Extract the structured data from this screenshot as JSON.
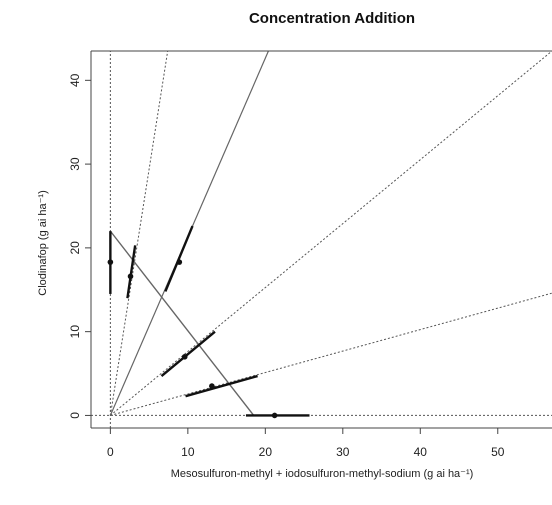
{
  "chart_data": {
    "type": "scatter",
    "title": "Concentration Addition",
    "xlabel": "Mesosulfuron-methyl + iodosulfuron-methyl-sodium (g ai ha⁻¹)",
    "ylabel": "Clodinafop (g ai ha⁻¹)",
    "xlim": [
      -2.5,
      57
    ],
    "ylim": [
      -1.5,
      43.5
    ],
    "x_ticks": [
      0,
      10,
      20,
      30,
      40,
      50
    ],
    "y_ticks": [
      0,
      10,
      20,
      30,
      40
    ],
    "grid": false,
    "reference_lines": [
      {
        "style": "dotted",
        "x1": 0,
        "y1": -1.5,
        "x2": 0,
        "y2": 43.5
      },
      {
        "style": "dotted",
        "x1": -2.5,
        "y1": 0,
        "x2": 57,
        "y2": 0
      },
      {
        "style": "dotted",
        "x1": 0,
        "y1": 0,
        "x2": 7.4,
        "y2": 43.5
      },
      {
        "style": "dotted",
        "x1": 0,
        "y1": 0,
        "x2": 57,
        "y2": 43.5
      },
      {
        "style": "dotted",
        "x1": 0,
        "y1": 0,
        "x2": 57,
        "y2": 14.6
      }
    ],
    "solid_rays": [
      {
        "x1": 0,
        "y1": 0,
        "x2": 20.4,
        "y2": 43.5
      }
    ],
    "isobole": {
      "x_intercept": 18.5,
      "y_intercept": 22
    },
    "points": [
      {
        "x": 0,
        "y": 18.3,
        "interval": {
          "from": [
            0,
            14.5
          ],
          "to": [
            0,
            22.0
          ]
        }
      },
      {
        "x": 2.6,
        "y": 16.6,
        "interval": {
          "from": [
            2.2,
            14.0
          ],
          "to": [
            3.2,
            20.3
          ]
        }
      },
      {
        "x": 8.9,
        "y": 18.3,
        "interval": {
          "from": [
            7.1,
            14.8
          ],
          "to": [
            10.6,
            22.6
          ]
        }
      },
      {
        "x": 9.6,
        "y": 7.0,
        "interval": {
          "from": [
            6.6,
            4.7
          ],
          "to": [
            13.5,
            10.0
          ]
        }
      },
      {
        "x": 13.1,
        "y": 3.5,
        "interval": {
          "from": [
            9.7,
            2.3
          ],
          "to": [
            19.0,
            4.7
          ]
        }
      },
      {
        "x": 21.2,
        "y": 0,
        "interval": {
          "from": [
            17.5,
            0
          ],
          "to": [
            25.7,
            0
          ]
        }
      }
    ],
    "colors": {
      "axis": "#444444",
      "dotted": "#555555",
      "solid": "#666666",
      "point": "#111111"
    }
  }
}
